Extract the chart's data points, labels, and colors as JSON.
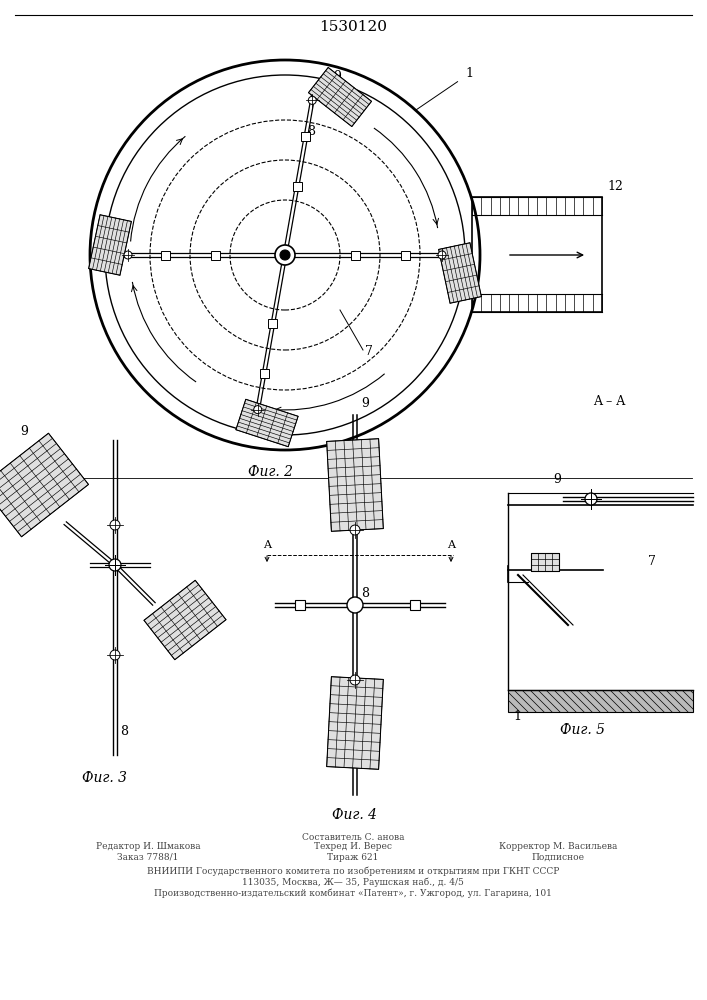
{
  "patent_number": "1530120",
  "background_color": "#ffffff",
  "line_color": "#000000",
  "fig2_caption": "Фиг. 2",
  "fig3_caption": "Фиг. 3",
  "fig4_caption": "Фиг. 4",
  "fig5_caption": "Фиг. 5",
  "footer_line1": "Составитель С. анова",
  "footer_line2a": "Редактор И. Шмакова",
  "footer_line2b": "Техред И. Верес",
  "footer_line2c": "Корректор М. Васильева",
  "footer_line3a": "Заказ 7788/1",
  "footer_line3b": "Тираж 621",
  "footer_line3c": "Подписное",
  "footer_line4": "ВНИИПИ Государственного комитета по изобретениям и открытиям при ГКНТ СССР",
  "footer_line5": "113035, Москва, Ж— 35, Раушская наб., д. 4/5",
  "footer_line6": "Производственно-издательский комбинат «Патент», г. Ужгород, ул. Гагарина, 101"
}
